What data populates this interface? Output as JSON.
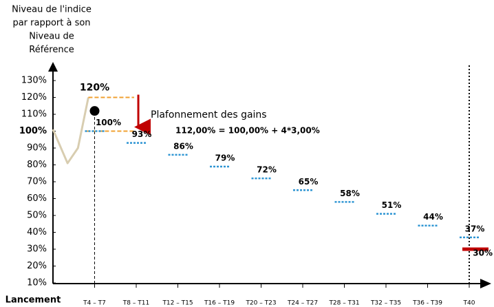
{
  "chart_data": {
    "type": "barrier",
    "y_label": [
      "Niveau de l'indice",
      "par rapport à son",
      "Niveau de",
      "Référence"
    ],
    "ylim": [
      10,
      139
    ],
    "yticks": [
      {
        "value": 10,
        "label": "10%"
      },
      {
        "value": 20,
        "label": "20%"
      },
      {
        "value": 30,
        "label": "30%"
      },
      {
        "value": 40,
        "label": "40%"
      },
      {
        "value": 50,
        "label": "50%"
      },
      {
        "value": 60,
        "label": "60%"
      },
      {
        "value": 70,
        "label": "70%"
      },
      {
        "value": 80,
        "label": "80%"
      },
      {
        "value": 90,
        "label": "90%"
      },
      {
        "value": 100,
        "label": "100%"
      },
      {
        "value": 110,
        "label": "110%"
      },
      {
        "value": 120,
        "label": "120%"
      },
      {
        "value": 130,
        "label": "130%"
      }
    ],
    "bold_tick": 100,
    "categories": [
      "Lancement",
      "T4 – T7",
      "T8 – T11",
      "T12 – T15",
      "T16 – T19",
      "T20 – T23",
      "T24 – T27",
      "T28 – T31",
      "T32 – T35",
      "T36 - T39",
      "T40"
    ],
    "series": [
      {
        "color": "#2e95d3",
        "values": [
          null,
          100,
          93,
          86,
          79,
          72,
          65,
          58,
          51,
          44,
          37
        ],
        "value_labels": [
          null,
          "100%",
          "93%",
          "86%",
          "79%",
          "72%",
          "65%",
          "58%",
          "51%",
          "44%",
          "37%"
        ]
      },
      {
        "color": "#c00000",
        "values": [
          null,
          null,
          null,
          null,
          null,
          null,
          null,
          null,
          null,
          null,
          30
        ],
        "value_labels": [
          null,
          null,
          null,
          null,
          null,
          null,
          null,
          null,
          null,
          null,
          "30%"
        ]
      }
    ],
    "index_path": {
      "color": "#d8cdb0",
      "x": [
        0,
        0.35,
        0.6,
        0.85
      ],
      "values": [
        101,
        81,
        90,
        120
      ]
    },
    "point": {
      "x": 1,
      "value": 112
    },
    "cap": {
      "upper": 120,
      "lower": 100,
      "label": "120%",
      "color": "#f0a030",
      "arrow_color": "#c00000"
    },
    "annotations": [
      "Plafonnement des gains",
      "112,00% = 100,00% + 4*3,00%"
    ]
  }
}
